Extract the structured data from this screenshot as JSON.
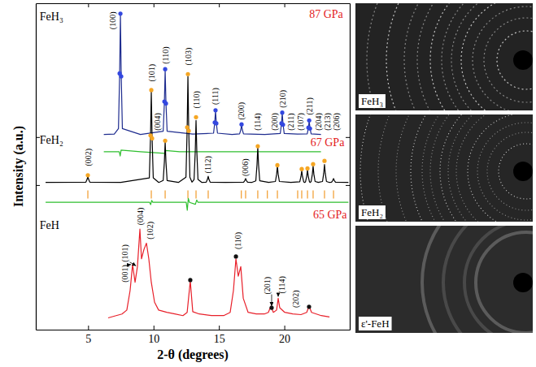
{
  "chart_data": {
    "type": "line",
    "x_label": "2-θ (degrees)",
    "y_label": "Intensity (a.u.)",
    "xlim": [
      1,
      25
    ],
    "xticks": [
      5,
      10,
      15,
      20
    ],
    "ylim": [
      0,
      100
    ],
    "yticks": [
      44.3,
      59
    ],
    "tick_labels": "x",
    "series": [
      {
        "type": "line",
        "color": "#1f2d8f",
        "x": [
          6.2,
          7.0,
          7.32,
          7.41,
          7.47,
          7.53,
          7.62,
          9.0,
          10.74,
          10.83,
          10.89,
          10.95,
          11.04,
          13.0,
          14.59,
          14.68,
          14.74,
          14.8,
          14.89,
          16.0,
          16.58,
          16.67,
          16.73,
          16.79,
          16.88,
          18.5,
          19.69,
          19.78,
          19.84,
          19.9,
          19.99,
          21.0,
          21.75,
          21.84,
          21.9,
          21.96,
          22.05,
          22.8
        ],
        "values": [
          59.8,
          59.9,
          61.6,
          78.1,
          96.4,
          78.1,
          61.6,
          59.8,
          60.8,
          69.6,
          79.5,
          69.6,
          60.8,
          59.9,
          60.2,
          63.4,
          67.0,
          63.4,
          60.2,
          59.8,
          60.0,
          61.2,
          62.7,
          61.2,
          60.0,
          59.8,
          60.1,
          63.0,
          66.3,
          63.0,
          60.1,
          59.9,
          60.0,
          61.8,
          63.9,
          61.8,
          60.0,
          59.8
        ]
      },
      {
        "type": "scatter",
        "marker": "circle",
        "color": "#3347e0",
        "x": [
          7.41,
          7.47,
          7.53,
          10.83,
          10.89,
          10.95,
          14.68,
          14.74,
          14.8,
          16.73,
          19.78,
          19.84,
          19.9,
          21.84,
          21.9,
          21.96
        ],
        "values": [
          78.5,
          96.8,
          77.6,
          69.9,
          79.8,
          69.3,
          63.5,
          67.2,
          63.2,
          62.9,
          63.2,
          66.5,
          62.8,
          61.9,
          64.1,
          61.6
        ]
      },
      {
        "type": "line",
        "color": "#2fbf2f",
        "x": [
          6.2,
          7.38,
          7.45,
          7.52,
          9.0,
          10.86,
          10.92,
          12.0,
          22.8
        ],
        "values": [
          54.5,
          54.5,
          53.2,
          55.0,
          54.5,
          54.0,
          54.9,
          54.5,
          54.5
        ]
      },
      {
        "type": "line",
        "color": "#000000",
        "x": [
          1.75,
          4.83,
          4.92,
          4.98,
          5.04,
          5.13,
          7.5,
          9.68,
          9.77,
          9.83,
          9.89,
          9.98,
          10.4,
          10.74,
          10.83,
          10.89,
          10.95,
          11.04,
          11.9,
          12.48,
          12.57,
          12.63,
          12.69,
          12.78,
          12.94,
          13.1,
          13.19,
          13.25,
          13.31,
          13.4,
          13.7,
          14.03,
          14.12,
          14.18,
          14.24,
          14.33,
          15.5,
          16.89,
          16.98,
          17.04,
          17.1,
          17.19,
          17.5,
          17.82,
          17.91,
          17.97,
          18.03,
          18.12,
          18.8,
          19.32,
          19.41,
          19.47,
          19.53,
          19.62,
          20.5,
          21.18,
          21.27,
          21.33,
          21.39,
          21.48,
          21.55,
          21.62,
          21.71,
          21.77,
          21.83,
          21.92,
          21.99,
          22.05,
          22.14,
          22.2,
          22.26,
          22.35,
          22.6,
          22.92,
          23.01,
          23.07,
          23.13,
          23.22,
          23.45,
          23.61,
          23.7,
          23.76,
          23.82,
          23.91,
          24.9
        ],
        "values": [
          45.1,
          45.2,
          46.0,
          47.0,
          46.0,
          45.2,
          45.1,
          46.5,
          59.0,
          72.8,
          59.0,
          46.5,
          45.1,
          45.7,
          51.4,
          57.6,
          51.4,
          45.7,
          45.1,
          46.7,
          61.4,
          77.6,
          61.4,
          46.7,
          45.2,
          46.0,
          54.6,
          64.1,
          54.6,
          46.0,
          45.1,
          45.2,
          46.0,
          47.0,
          46.0,
          45.2,
          45.1,
          45.2,
          45.7,
          46.3,
          45.7,
          45.2,
          45.1,
          45.6,
          50.5,
          55.9,
          50.5,
          45.6,
          45.1,
          45.4,
          47.6,
          50.1,
          47.6,
          45.4,
          45.1,
          45.3,
          46.9,
          48.7,
          46.9,
          45.3,
          45.1,
          45.3,
          47.0,
          48.9,
          47.0,
          45.3,
          45.1,
          45.4,
          47.6,
          50.1,
          47.6,
          45.4,
          45.1,
          45.4,
          47.9,
          50.6,
          47.9,
          45.4,
          45.1,
          45.2,
          45.7,
          46.3,
          45.7,
          45.2,
          45.1
        ]
      },
      {
        "type": "scatter",
        "marker": "circle",
        "color": "#f5a623",
        "x": [
          4.98,
          9.77,
          9.83,
          9.89,
          10.89,
          12.57,
          12.63,
          12.69,
          13.25,
          17.97,
          19.47,
          21.33,
          21.77,
          22.2,
          23.07
        ],
        "values": [
          47.3,
          59.5,
          73.4,
          58.6,
          57.9,
          62.0,
          78.3,
          60.9,
          65.1,
          56.2,
          50.4,
          49.2,
          49.4,
          50.7,
          51.7
        ]
      },
      {
        "type": "scatter",
        "marker": "vline",
        "color": "#f2a23a",
        "x": [
          4.98,
          9.83,
          10.89,
          12.63,
          13.25,
          14.18,
          16.71,
          17.04,
          17.97,
          18.7,
          19.47,
          21.02,
          21.33,
          21.77,
          22.2,
          23.07,
          23.76
        ],
        "values": [
          41.4,
          41.4,
          41.4,
          41.4,
          41.4,
          41.4,
          41.4,
          41.4,
          41.4,
          41.4,
          41.4,
          41.4,
          41.4,
          41.4,
          41.4,
          41.4,
          41.4
        ]
      },
      {
        "type": "line",
        "color": "#2fbf2f",
        "x": [
          1.75,
          9.7,
          9.78,
          9.86,
          9.95,
          12.5,
          12.58,
          12.66,
          12.75,
          13.2,
          13.3,
          13.4,
          24.9
        ],
        "values": [
          39.0,
          39.0,
          38.3,
          39.6,
          39.0,
          39.0,
          36.6,
          40.2,
          39.0,
          38.4,
          39.7,
          39.0,
          39.0
        ]
      },
      {
        "type": "line",
        "color": "#e8202a",
        "x": [
          6.53,
          6.97,
          7.59,
          7.96,
          8.21,
          8.4,
          8.59,
          8.77,
          8.96,
          9.08,
          9.27,
          9.46,
          9.64,
          9.83,
          10.08,
          10.39,
          11.01,
          11.63,
          12.25,
          12.57,
          12.81,
          13.0,
          13.5,
          14.43,
          15.36,
          15.86,
          16.11,
          16.3,
          16.48,
          16.67,
          16.86,
          17.23,
          17.85,
          18.47,
          18.78,
          18.97,
          19.16,
          19.41,
          19.53,
          19.65,
          20.03,
          20.65,
          21.27,
          21.71,
          21.89,
          22.08,
          22.82,
          23.45
        ],
        "values": [
          3.6,
          4.1,
          4.8,
          6.0,
          12.0,
          20.0,
          14.5,
          19.3,
          30.8,
          21.7,
          24.6,
          26.5,
          21.7,
          14.5,
          8.4,
          6.0,
          5.3,
          4.8,
          4.3,
          5.3,
          14.9,
          5.5,
          4.8,
          4.3,
          4.3,
          5.3,
          12.0,
          21.7,
          16.4,
          19.3,
          9.6,
          5.3,
          4.8,
          4.8,
          5.3,
          7.2,
          5.3,
          6.0,
          9.6,
          6.7,
          5.3,
          4.8,
          4.6,
          5.3,
          7.2,
          5.3,
          4.3,
          3.9
        ]
      },
      {
        "type": "scatter",
        "marker": "circle",
        "color": "#111111",
        "x": [
          12.81,
          16.3,
          19.03,
          21.89
        ],
        "values": [
          15.2,
          22.4,
          6.7,
          7.0
        ]
      }
    ],
    "annotations": [
      {
        "text": "FeH₃",
        "x": 1.3,
        "y": 94.7,
        "color": "#000000"
      },
      {
        "text": "87 GPa",
        "x": 21.9,
        "y": 95.4,
        "color": "#e3211c"
      },
      {
        "text": "FeH₂",
        "x": 1.3,
        "y": 56.9,
        "color": "#000000"
      },
      {
        "text": "67 GPa",
        "x": 22.0,
        "y": 56.3,
        "color": "#e3211c"
      },
      {
        "text": "FeH",
        "x": 1.3,
        "y": 30.8,
        "color": "#000000"
      },
      {
        "text": "65 GPa",
        "x": 22.2,
        "y": 34.2,
        "color": "#e3211c"
      }
    ],
    "peak_labels": [
      {
        "text": "(100)",
        "x": 6.9,
        "y": 92.0
      },
      {
        "text": "(110)",
        "x": 10.89,
        "y": 81.4
      },
      {
        "text": "(111)",
        "x": 14.74,
        "y": 68.9
      },
      {
        "text": "(200)",
        "x": 16.73,
        "y": 64.3
      },
      {
        "text": "(210)",
        "x": 19.84,
        "y": 68.0
      },
      {
        "text": "(211)",
        "x": 21.9,
        "y": 65.8
      },
      {
        "text": "(002)",
        "x": 4.98,
        "y": 50.1
      },
      {
        "text": "(101)",
        "x": 9.83,
        "y": 76.0
      },
      {
        "text": "(004)",
        "x": 10.3,
        "y": 61.0
      },
      {
        "text": "(103)",
        "x": 12.63,
        "y": 81.0
      },
      {
        "text": "(110)",
        "x": 13.25,
        "y": 67.8
      },
      {
        "text": "(112)",
        "x": 14.18,
        "y": 47.9
      },
      {
        "text": "(006)",
        "x": 17.04,
        "y": 47.0
      },
      {
        "text": "(114)",
        "x": 17.97,
        "y": 61.0
      },
      {
        "text": "(200)",
        "x": 19.22,
        "y": 61.0
      },
      {
        "text": "(211)",
        "x": 20.52,
        "y": 61.0
      },
      {
        "text": "(107)",
        "x": 21.21,
        "y": 61.0
      },
      {
        "text": "(204)",
        "x": 22.58,
        "y": 61.0
      },
      {
        "text": "(213)",
        "x": 23.3,
        "y": 61.0
      },
      {
        "text": "(206)",
        "x": 24.0,
        "y": 61.0
      },
      {
        "text": "(001)",
        "x": 7.78,
        "y": 14.5,
        "point": [
          8.4,
          20.0
        ]
      },
      {
        "text": "(101)",
        "x": 7.78,
        "y": 20.7,
        "point": [
          8.77,
          19.3
        ]
      },
      {
        "text": "(004)",
        "x": 8.96,
        "y": 32.0
      },
      {
        "text": "(102)",
        "x": 9.71,
        "y": 27.7
      },
      {
        "text": "(110)",
        "x": 16.48,
        "y": 24.6
      },
      {
        "text": "(201)",
        "x": 18.66,
        "y": 10.8,
        "point": [
          19.03,
          6.7
        ]
      },
      {
        "text": "(114)",
        "x": 19.78,
        "y": 11.1,
        "point": [
          19.53,
          9.6
        ]
      },
      {
        "text": "(202)",
        "x": 20.84,
        "y": 6.7
      }
    ]
  },
  "diffraction_images": [
    {
      "label": "FeH₃"
    },
    {
      "label": "FeH₂"
    },
    {
      "label": "ε'-FeH"
    }
  ]
}
